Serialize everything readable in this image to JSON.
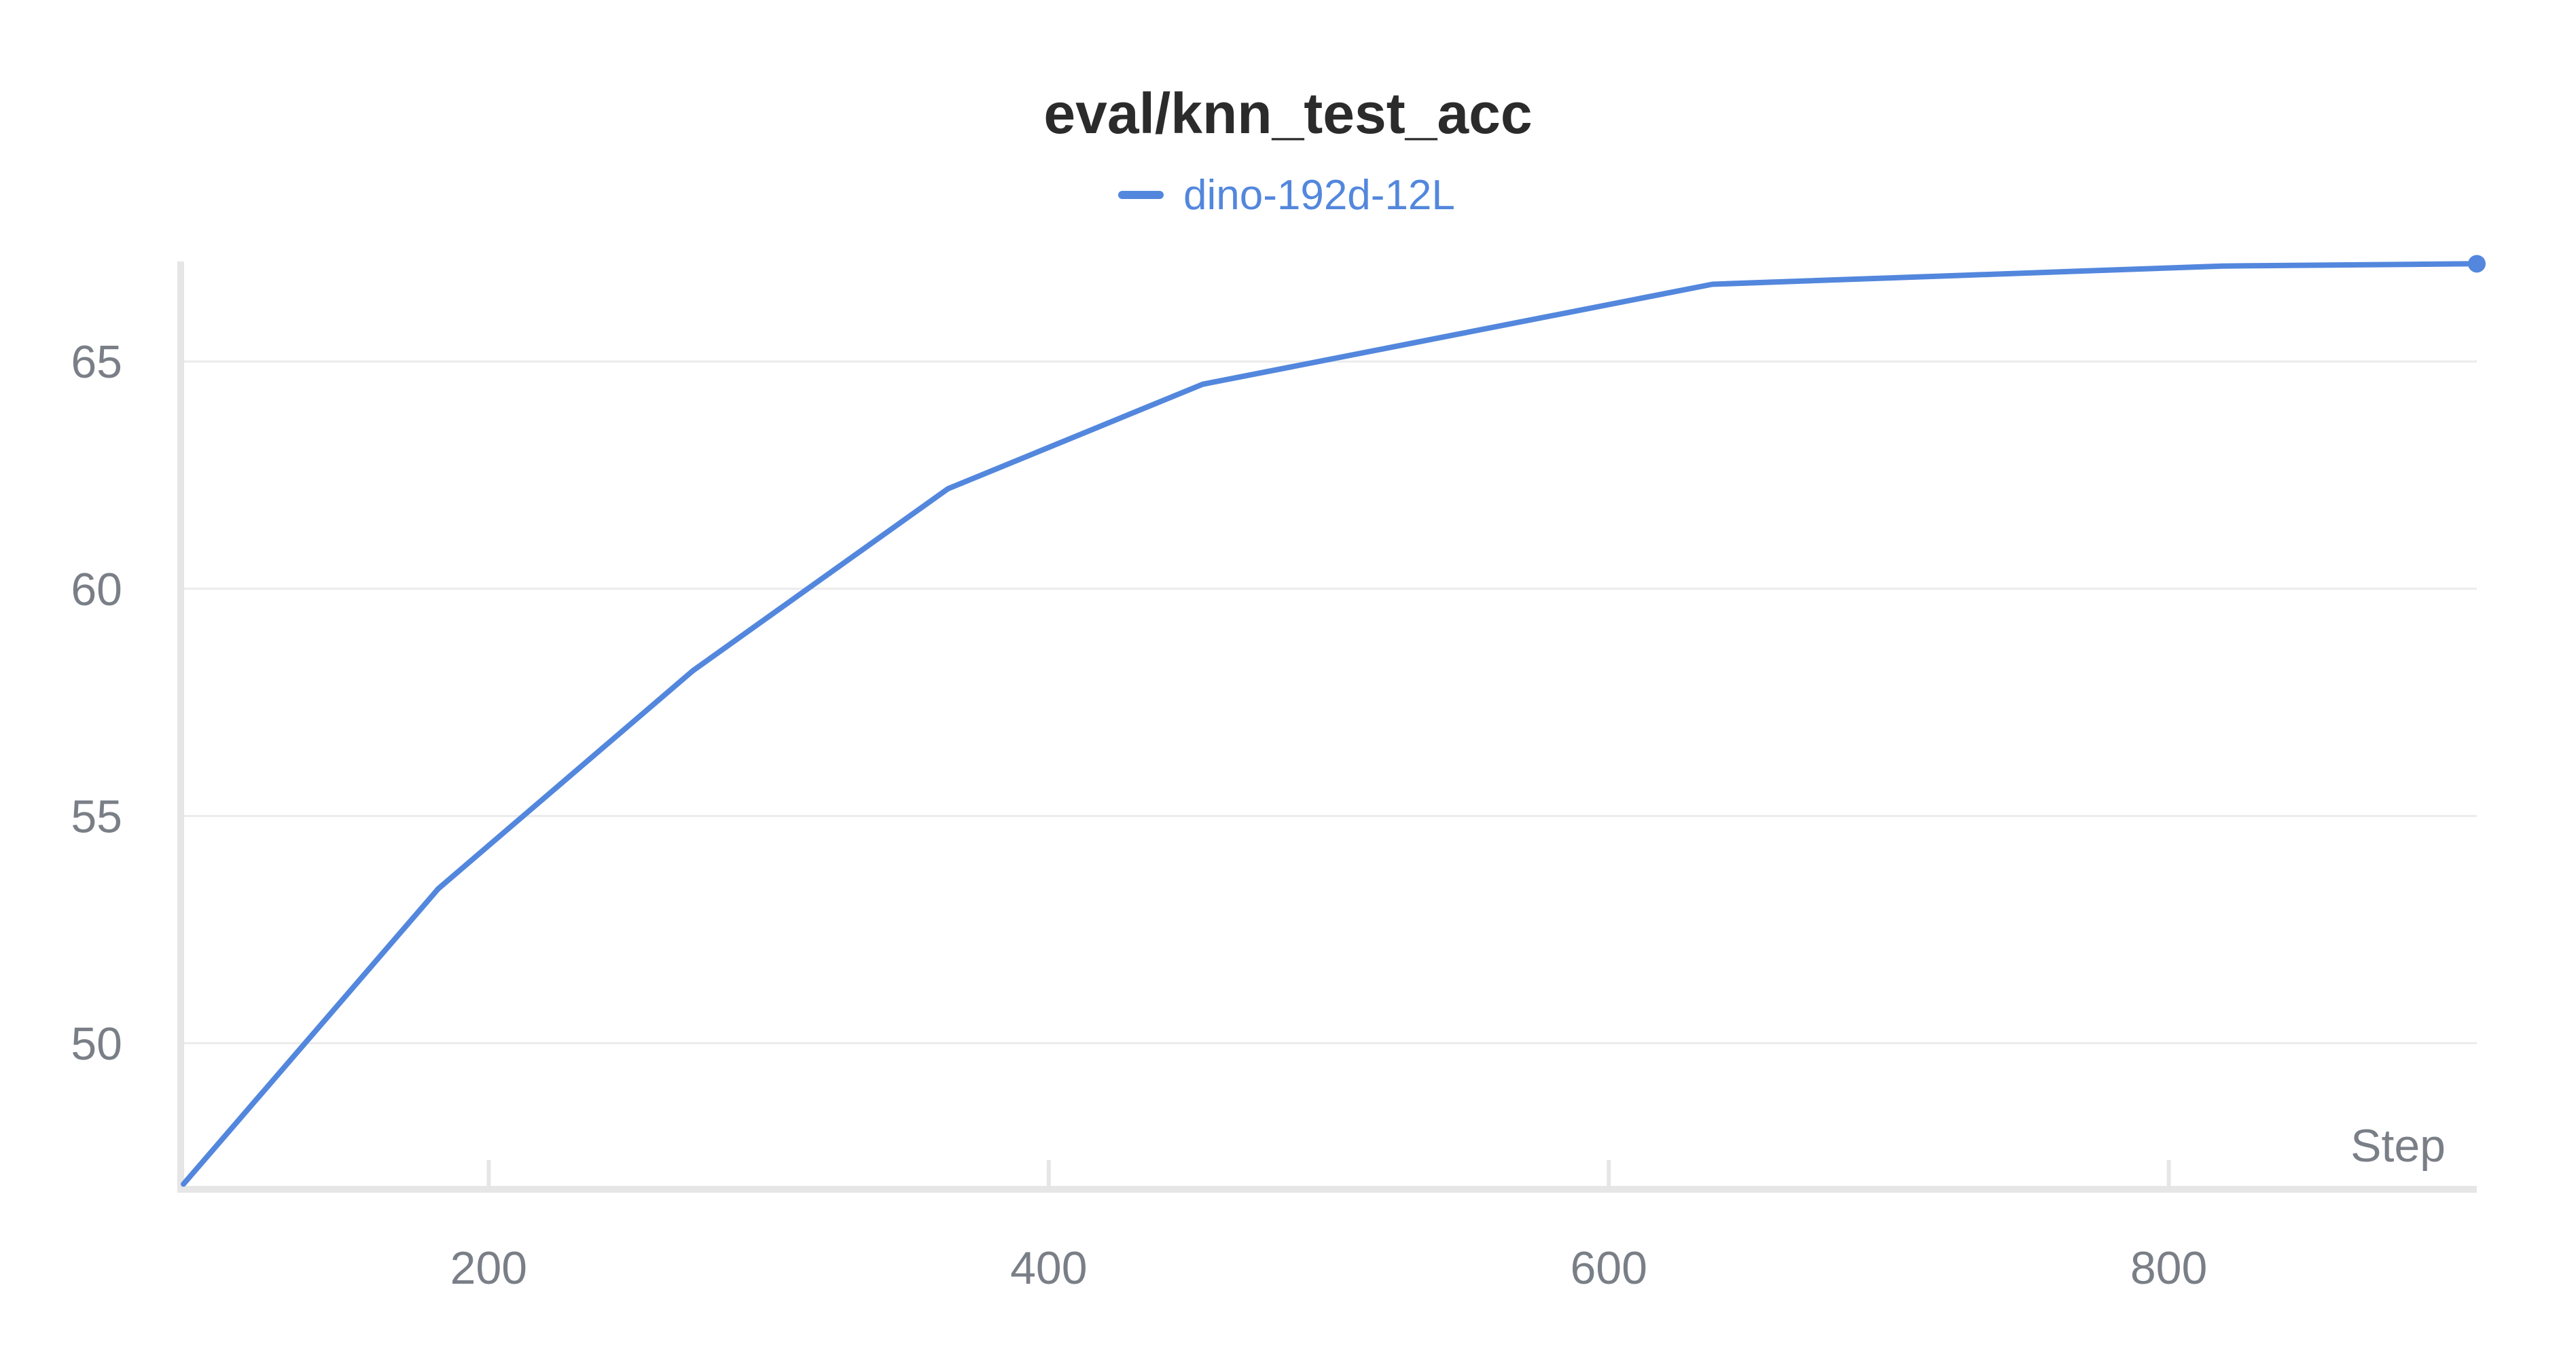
{
  "chart_data": {
    "type": "line",
    "title": "eval/knn_test_acc",
    "xlabel": "Step",
    "ylabel": "",
    "xlim": [
      90,
      910
    ],
    "ylim": [
      46.8,
      67.2
    ],
    "xticks": [
      200,
      400,
      600,
      800
    ],
    "yticks": [
      50,
      55,
      60,
      65
    ],
    "grid": true,
    "legend_position": "top-center",
    "series": [
      {
        "name": "dino-192d-12L",
        "color": "#5387dd",
        "x": [
          91,
          182,
          273,
          364,
          455,
          546,
          637,
          728,
          819,
          910
        ],
        "y": [
          46.9,
          53.4,
          58.2,
          62.2,
          64.5,
          65.6,
          66.7,
          66.9,
          67.1,
          67.15
        ]
      }
    ],
    "colors": {
      "axis": "#e6e6e6",
      "grid": "#ebebeb",
      "tick_text": "#7a7f87",
      "title_text": "#2b2b2b"
    }
  }
}
